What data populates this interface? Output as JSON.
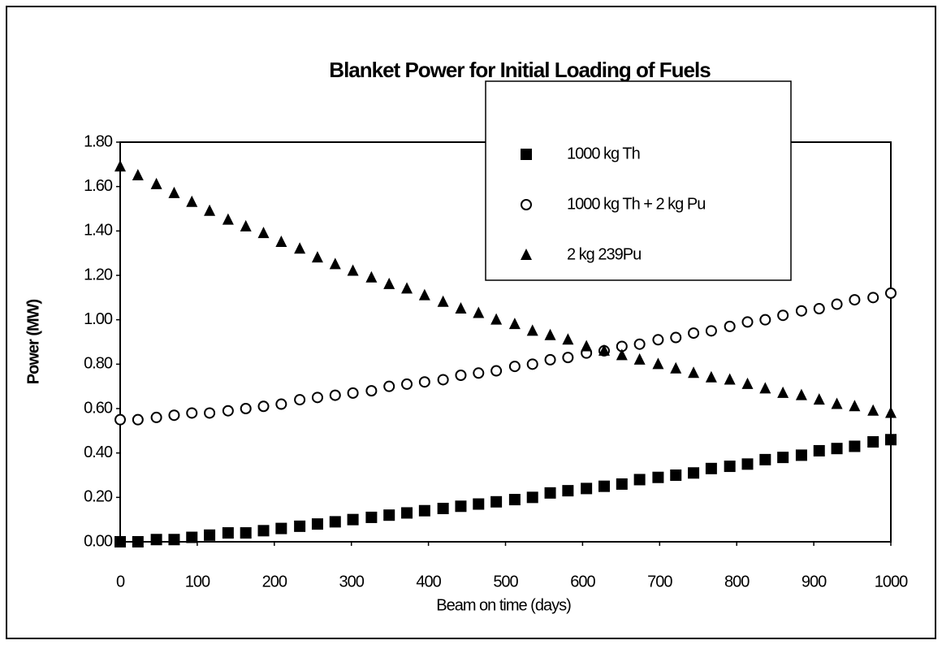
{
  "chart_data": {
    "type": "scatter",
    "title": "Blanket Power for Initial Loading of Fuels",
    "x_label": "Beam on time (days)",
    "y_label": "Power (MW)",
    "x": [
      0,
      23,
      47,
      70,
      93,
      116,
      140,
      163,
      186,
      209,
      233,
      256,
      279,
      302,
      326,
      349,
      372,
      395,
      419,
      442,
      465,
      488,
      512,
      535,
      558,
      581,
      605,
      628,
      651,
      674,
      698,
      721,
      744,
      767,
      791,
      814,
      837,
      860,
      884,
      907,
      930,
      953,
      977,
      1000
    ],
    "series": [
      {
        "name": "1000 kg Th",
        "color": "#000000",
        "marker": "square",
        "values": [
          0,
          0,
          0.01,
          0.01,
          0.02,
          0.03,
          0.04,
          0.04,
          0.05,
          0.06,
          0.07,
          0.08,
          0.09,
          0.1,
          0.11,
          0.12,
          0.13,
          0.14,
          0.15,
          0.16,
          0.17,
          0.18,
          0.19,
          0.2,
          0.22,
          0.23,
          0.24,
          0.25,
          0.26,
          0.28,
          0.29,
          0.3,
          0.31,
          0.33,
          0.34,
          0.35,
          0.37,
          0.38,
          0.39,
          0.41,
          0.42,
          0.43,
          0.45,
          0.46
        ]
      },
      {
        "name": "1000 kg Th + 2 kg Pu",
        "color": "#000000",
        "marker": "circle",
        "values": [
          0.55,
          0.55,
          0.56,
          0.57,
          0.58,
          0.58,
          0.59,
          0.6,
          0.61,
          0.62,
          0.64,
          0.65,
          0.66,
          0.67,
          0.68,
          0.7,
          0.71,
          0.72,
          0.73,
          0.75,
          0.76,
          0.77,
          0.79,
          0.8,
          0.82,
          0.83,
          0.85,
          0.86,
          0.88,
          0.89,
          0.91,
          0.92,
          0.94,
          0.95,
          0.97,
          0.99,
          1.0,
          1.02,
          1.04,
          1.05,
          1.07,
          1.09,
          1.1,
          1.12
        ]
      },
      {
        "name": "2 kg 239Pu",
        "color": "#000000",
        "marker": "triangle",
        "values": [
          1.69,
          1.65,
          1.61,
          1.57,
          1.53,
          1.49,
          1.45,
          1.42,
          1.39,
          1.35,
          1.32,
          1.28,
          1.25,
          1.22,
          1.19,
          1.16,
          1.14,
          1.11,
          1.08,
          1.05,
          1.03,
          1.0,
          0.98,
          0.95,
          0.93,
          0.91,
          0.88,
          0.86,
          0.84,
          0.82,
          0.8,
          0.78,
          0.76,
          0.74,
          0.73,
          0.71,
          0.69,
          0.67,
          0.66,
          0.64,
          0.62,
          0.61,
          0.59,
          0.58
        ]
      }
    ],
    "xlim": [
      0,
      1000
    ],
    "xticks": [
      0,
      100,
      200,
      300,
      400,
      500,
      600,
      700,
      800,
      900,
      1000
    ],
    "ylim": [
      0,
      1.8
    ],
    "yticks": [
      {
        "value": 0,
        "label": "0.00"
      },
      {
        "value": 0.2,
        "label": "0.20"
      },
      {
        "value": 0.4,
        "label": "0.40"
      },
      {
        "value": 0.6,
        "label": "0.60"
      },
      {
        "value": 0.8,
        "label": "0.80"
      },
      {
        "value": 1.0,
        "label": "1.00"
      },
      {
        "value": 1.2,
        "label": "1.20"
      },
      {
        "value": 1.4,
        "label": "1.40"
      },
      {
        "value": 1.6,
        "label": "1.60"
      },
      {
        "value": 1.8,
        "label": "1.80"
      }
    ],
    "grid": false,
    "legend": "upper right"
  }
}
